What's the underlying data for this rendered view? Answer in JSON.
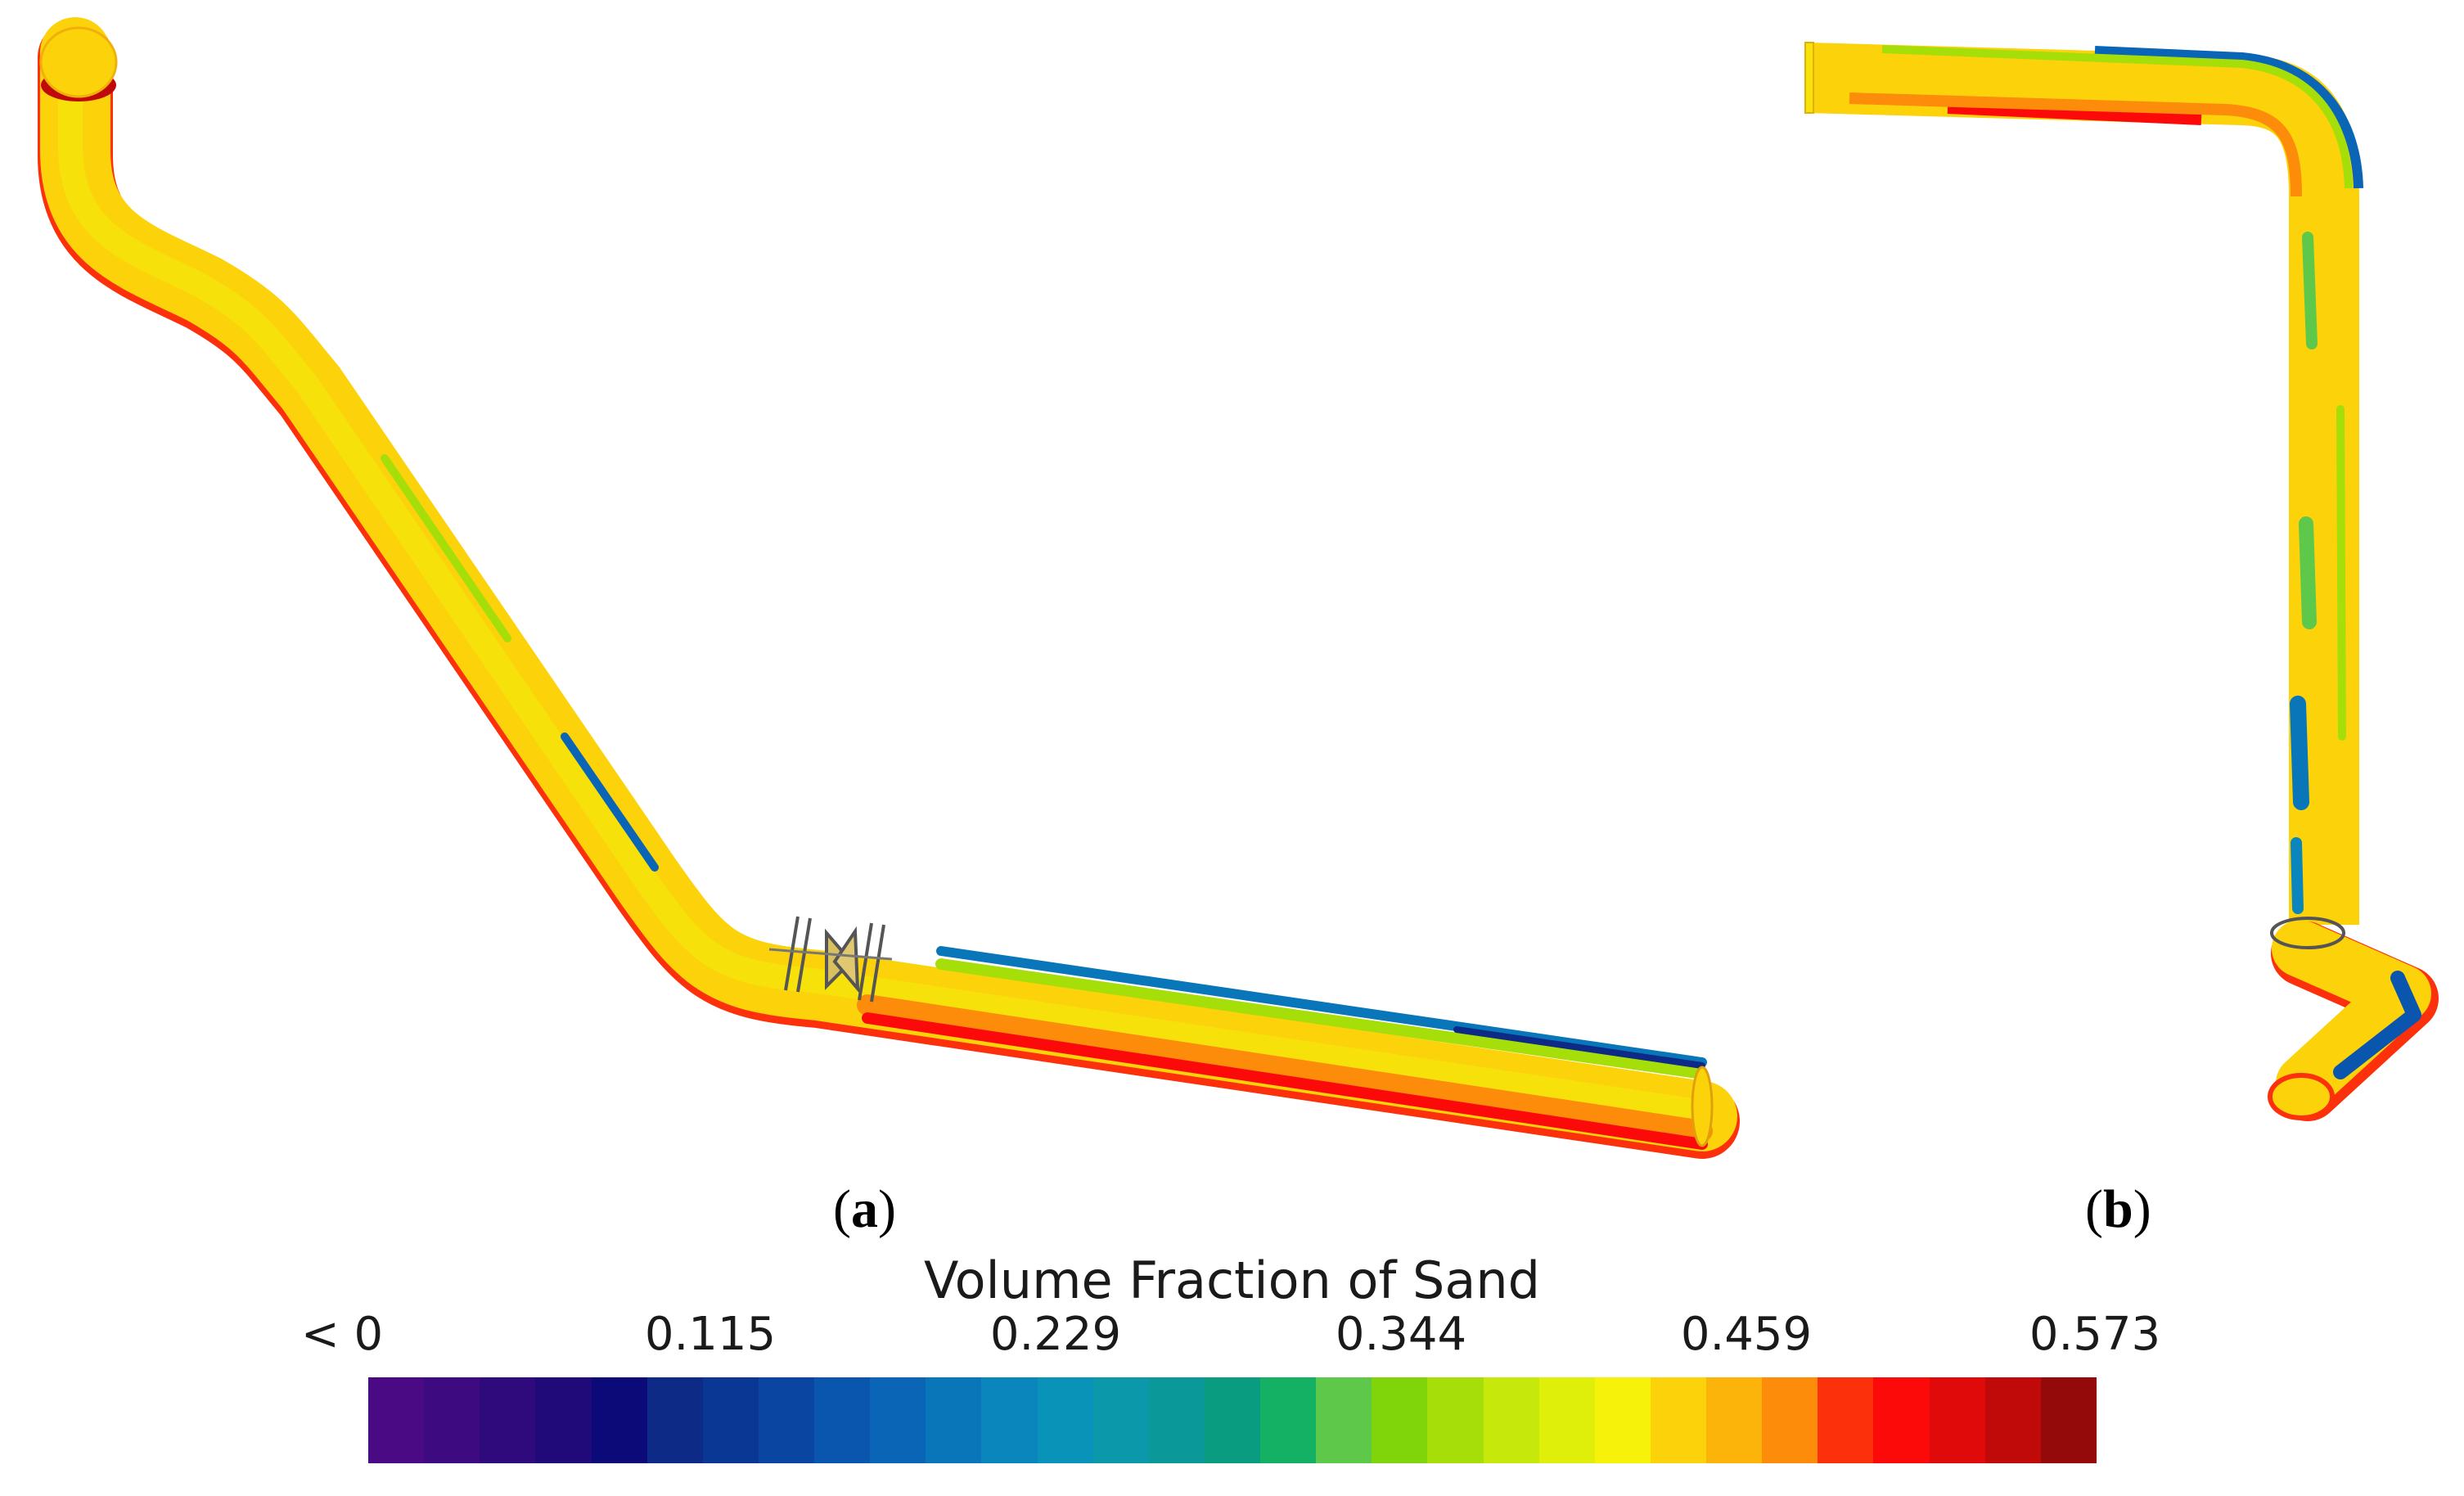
{
  "figure": {
    "panel_a_label": "a",
    "panel_b_label": "b"
  },
  "legend": {
    "title": "Volume Fraction of Sand",
    "ticks": [
      "< 0",
      "0.115",
      "0.229",
      "0.344",
      "0.459",
      "0.573"
    ],
    "colors": [
      "#4a0a84",
      "#3e0a80",
      "#2f0a7c",
      "#200a7a",
      "#0b0a78",
      "#0d2a86",
      "#0b3794",
      "#0a45a2",
      "#0a55ae",
      "#0a65b6",
      "#0a76ba",
      "#0a86bc",
      "#0a93b8",
      "#0a98aa",
      "#0a9898",
      "#0a9c80",
      "#14b064",
      "#5ec84a",
      "#80d40a",
      "#a6de0a",
      "#c6e80a",
      "#e0ef0a",
      "#f6f20a",
      "#fcd20a",
      "#fcb40a",
      "#fc8c0a",
      "#fc300a",
      "#fc0a0a",
      "#e00a0a",
      "#c00a0a",
      "#940a0a"
    ]
  },
  "pipe_colors": {
    "body": "#fcd20a",
    "inner": "#f6e20a",
    "underside": "#fc300a",
    "topside": "#0a76ba",
    "low_green": "#a6de0a",
    "deep": "#0d2a86"
  }
}
